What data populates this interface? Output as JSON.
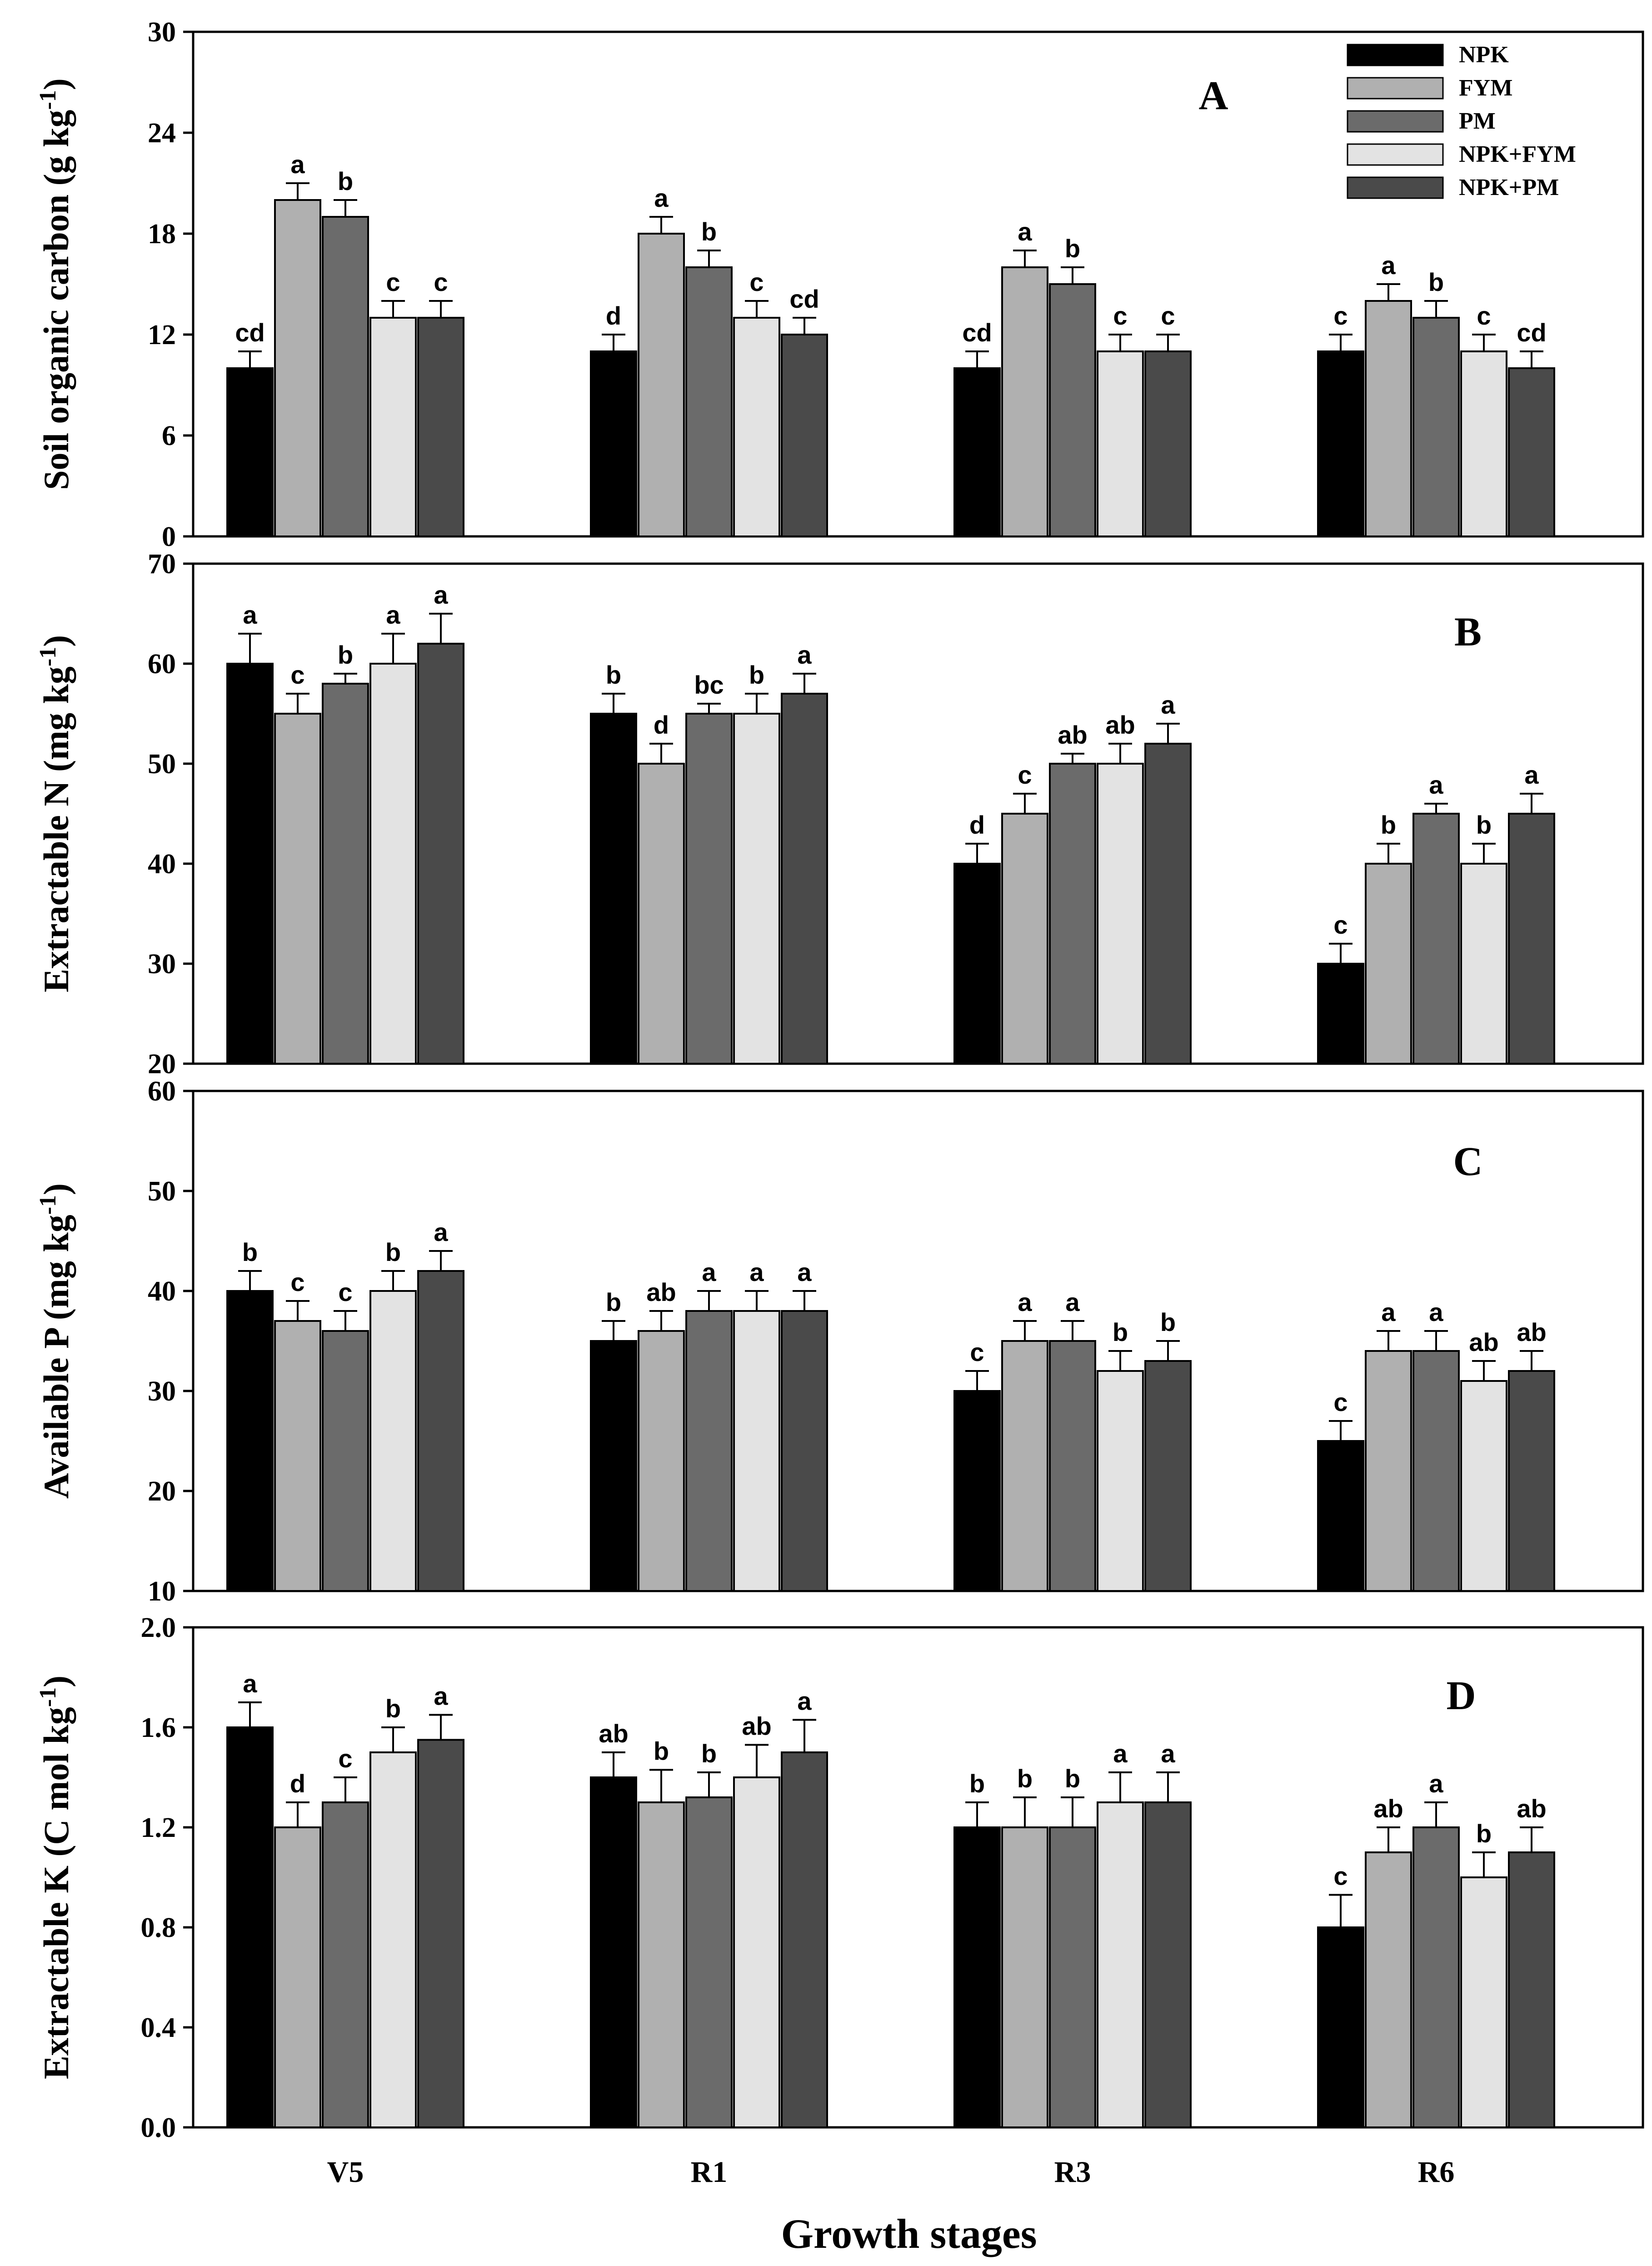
{
  "xlabel": "Growth stages",
  "legend": [
    {
      "name": "NPK",
      "color": "#000000"
    },
    {
      "name": "FYM",
      "color": "#b0b0b0"
    },
    {
      "name": "PM",
      "color": "#6b6b6b"
    },
    {
      "name": "NPK+FYM",
      "color": "#e3e3e3"
    },
    {
      "name": "NPK+PM",
      "color": "#4a4a4a"
    }
  ],
  "chart_data": [
    {
      "type": "bar",
      "panel": "A",
      "ylabel": "Soil organic carbon (g kg-1)",
      "ylabel_main": "Soil organic carbon (g kg",
      "ylabel_sup": "-1",
      "ylabel_tail": ")",
      "ylim": [
        0,
        30
      ],
      "yticks": [
        "0",
        "6",
        "12",
        "18",
        "24",
        "30"
      ],
      "categories": [
        "V5",
        "R1",
        "R3",
        "R6"
      ],
      "series": [
        {
          "name": "NPK",
          "values": [
            10,
            11,
            10,
            11
          ],
          "errors": [
            1,
            1,
            1,
            1
          ],
          "letters": [
            "cd",
            "d",
            "cd",
            "c"
          ]
        },
        {
          "name": "FYM",
          "values": [
            20,
            18,
            16,
            14
          ],
          "errors": [
            1,
            1,
            1,
            1
          ],
          "letters": [
            "a",
            "a",
            "a",
            "a"
          ]
        },
        {
          "name": "PM",
          "values": [
            19,
            16,
            15,
            13
          ],
          "errors": [
            1,
            1,
            1,
            1
          ],
          "letters": [
            "b",
            "b",
            "b",
            "b"
          ]
        },
        {
          "name": "NPK+FYM",
          "values": [
            13,
            13,
            11,
            11
          ],
          "errors": [
            1,
            1,
            1,
            1
          ],
          "letters": [
            "c",
            "c",
            "c",
            "c"
          ]
        },
        {
          "name": "NPK+PM",
          "values": [
            13,
            12,
            11,
            10
          ],
          "errors": [
            1,
            1,
            1,
            1
          ],
          "letters": [
            "c",
            "cd",
            "c",
            "cd"
          ]
        }
      ]
    },
    {
      "type": "bar",
      "panel": "B",
      "ylabel": "Extractable N (mg kg-1)",
      "ylabel_main": "Extractable N (mg kg",
      "ylabel_sup": "-1",
      "ylabel_tail": ")",
      "ylim": [
        20,
        70
      ],
      "yticks": [
        "20",
        "30",
        "40",
        "50",
        "60",
        "70"
      ],
      "categories": [
        "V5",
        "R1",
        "R3",
        "R6"
      ],
      "series": [
        {
          "name": "NPK",
          "values": [
            60,
            55,
            40,
            30
          ],
          "errors": [
            3,
            2,
            2,
            2
          ],
          "letters": [
            "a",
            "b",
            "d",
            "c"
          ]
        },
        {
          "name": "FYM",
          "values": [
            55,
            50,
            45,
            40
          ],
          "errors": [
            2,
            2,
            2,
            2
          ],
          "letters": [
            "c",
            "d",
            "c",
            "b"
          ]
        },
        {
          "name": "PM",
          "values": [
            58,
            55,
            50,
            45
          ],
          "errors": [
            1,
            1,
            1,
            1
          ],
          "letters": [
            "b",
            "bc",
            "ab",
            "a"
          ]
        },
        {
          "name": "NPK+FYM",
          "values": [
            60,
            55,
            50,
            40
          ],
          "errors": [
            3,
            2,
            2,
            2
          ],
          "letters": [
            "a",
            "b",
            "ab",
            "b"
          ]
        },
        {
          "name": "NPK+PM",
          "values": [
            62,
            57,
            52,
            45
          ],
          "errors": [
            3,
            2,
            2,
            2
          ],
          "letters": [
            "a",
            "a",
            "a",
            "a"
          ]
        }
      ]
    },
    {
      "type": "bar",
      "panel": "C",
      "ylabel": "Available P (mg kg-1)",
      "ylabel_main": "Available P (mg kg",
      "ylabel_sup": "-1",
      "ylabel_tail": ")",
      "ylim": [
        10,
        60
      ],
      "yticks": [
        "10",
        "20",
        "30",
        "40",
        "50",
        "60"
      ],
      "categories": [
        "V5",
        "R1",
        "R3",
        "R6"
      ],
      "series": [
        {
          "name": "NPK",
          "values": [
            40,
            35,
            30,
            25
          ],
          "errors": [
            2,
            2,
            2,
            2
          ],
          "letters": [
            "b",
            "b",
            "c",
            "c"
          ]
        },
        {
          "name": "FYM",
          "values": [
            37,
            36,
            35,
            34
          ],
          "errors": [
            2,
            2,
            2,
            2
          ],
          "letters": [
            "c",
            "ab",
            "a",
            "a"
          ]
        },
        {
          "name": "PM",
          "values": [
            36,
            38,
            35,
            34
          ],
          "errors": [
            2,
            2,
            2,
            2
          ],
          "letters": [
            "c",
            "a",
            "a",
            "a"
          ]
        },
        {
          "name": "NPK+FYM",
          "values": [
            40,
            38,
            32,
            31
          ],
          "errors": [
            2,
            2,
            2,
            2
          ],
          "letters": [
            "b",
            "a",
            "b",
            "ab"
          ]
        },
        {
          "name": "NPK+PM",
          "values": [
            42,
            38,
            33,
            32
          ],
          "errors": [
            2,
            2,
            2,
            2
          ],
          "letters": [
            "a",
            "a",
            "b",
            "ab"
          ]
        }
      ]
    },
    {
      "type": "bar",
      "panel": "D",
      "ylabel": "Extractable K (C mol kg-1)",
      "ylabel_main": "Extractable K (C mol kg",
      "ylabel_sup": "-1",
      "ylabel_tail": ")",
      "ylim": [
        0,
        2.0
      ],
      "yticks": [
        "0.0",
        "0.4",
        "0.8",
        "1.2",
        "1.6",
        "2.0"
      ],
      "categories": [
        "V5",
        "R1",
        "R3",
        "R6"
      ],
      "series": [
        {
          "name": "NPK",
          "values": [
            1.6,
            1.4,
            1.2,
            0.8
          ],
          "errors": [
            0.1,
            0.1,
            0.1,
            0.13
          ],
          "letters": [
            "a",
            "ab",
            "b",
            "c"
          ]
        },
        {
          "name": "FYM",
          "values": [
            1.2,
            1.3,
            1.2,
            1.1
          ],
          "errors": [
            0.1,
            0.13,
            0.12,
            0.1
          ],
          "letters": [
            "d",
            "b",
            "b",
            "ab"
          ]
        },
        {
          "name": "PM",
          "values": [
            1.3,
            1.32,
            1.2,
            1.2
          ],
          "errors": [
            0.1,
            0.1,
            0.12,
            0.1
          ],
          "letters": [
            "c",
            "b",
            "b",
            "a"
          ]
        },
        {
          "name": "NPK+FYM",
          "values": [
            1.5,
            1.4,
            1.3,
            1.0
          ],
          "errors": [
            0.1,
            0.13,
            0.12,
            0.1
          ],
          "letters": [
            "b",
            "ab",
            "a",
            "b"
          ]
        },
        {
          "name": "NPK+PM",
          "values": [
            1.55,
            1.5,
            1.3,
            1.1
          ],
          "errors": [
            0.1,
            0.13,
            0.12,
            0.1
          ],
          "letters": [
            "a",
            "a",
            "a",
            "ab"
          ]
        }
      ]
    }
  ]
}
